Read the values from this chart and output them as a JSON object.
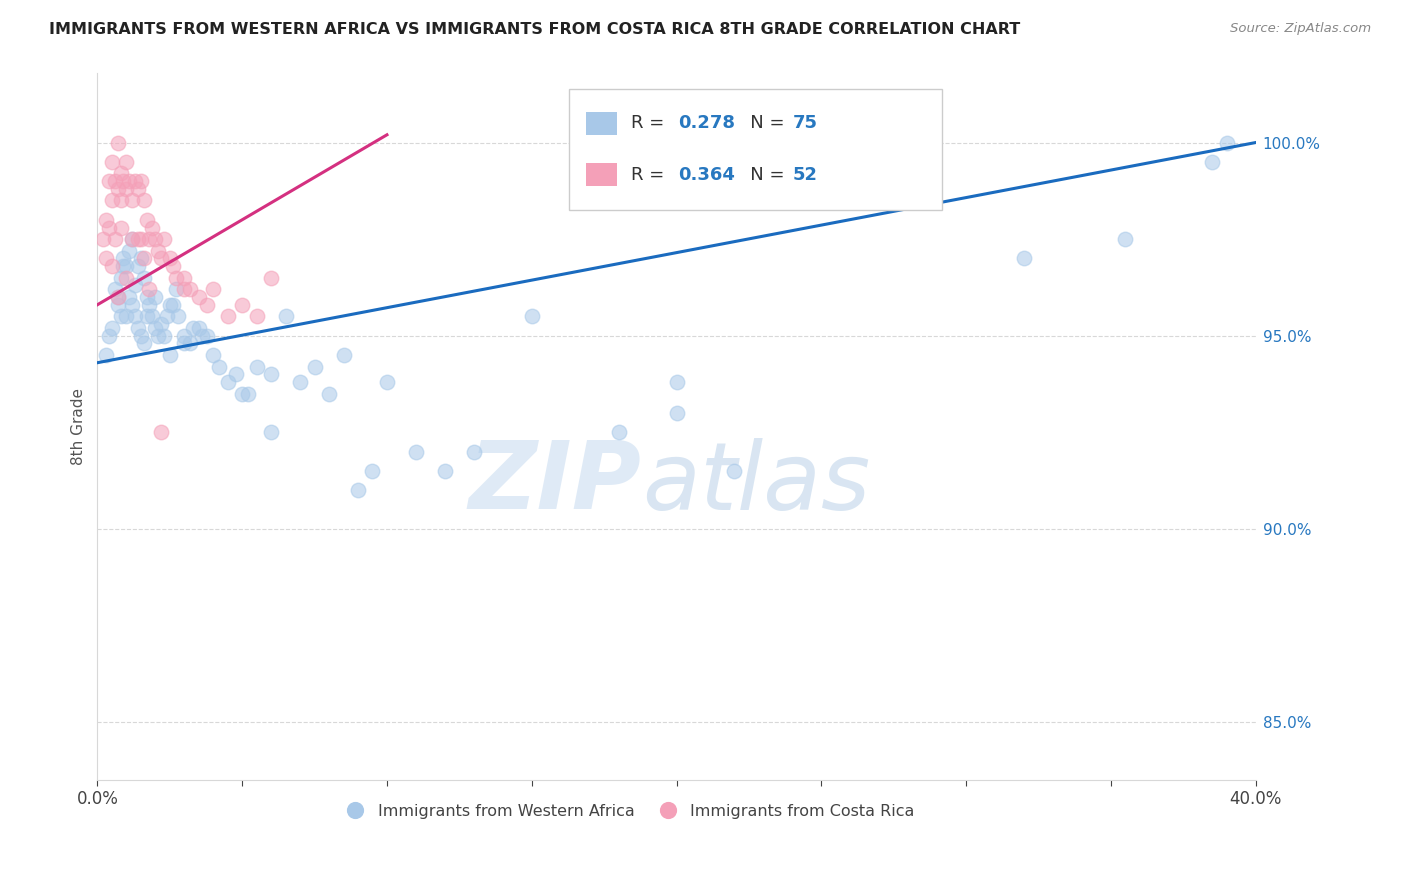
{
  "title": "IMMIGRANTS FROM WESTERN AFRICA VS IMMIGRANTS FROM COSTA RICA 8TH GRADE CORRELATION CHART",
  "source": "Source: ZipAtlas.com",
  "ylabel": "8th Grade",
  "ylabel_right_ticks": [
    85.0,
    90.0,
    95.0,
    100.0
  ],
  "xmin": 0.0,
  "xmax": 40.0,
  "ymin": 83.5,
  "ymax": 101.8,
  "blue_color": "#a8c8e8",
  "pink_color": "#f4a0b8",
  "blue_line_color": "#1a6bbf",
  "pink_line_color": "#d43080",
  "watermark_zip": "ZIP",
  "watermark_atlas": "atlas",
  "blue_line_x0": 0.0,
  "blue_line_y0": 94.3,
  "blue_line_x1": 40.0,
  "blue_line_y1": 100.0,
  "pink_line_x0": 0.0,
  "pink_line_y0": 95.8,
  "pink_line_x1": 10.0,
  "pink_line_y1": 100.2,
  "blue_x": [
    0.3,
    0.4,
    0.5,
    0.6,
    0.7,
    0.7,
    0.8,
    0.8,
    0.9,
    0.9,
    1.0,
    1.0,
    1.1,
    1.1,
    1.2,
    1.2,
    1.3,
    1.3,
    1.4,
    1.4,
    1.5,
    1.5,
    1.6,
    1.6,
    1.7,
    1.7,
    1.8,
    1.9,
    2.0,
    2.0,
    2.1,
    2.2,
    2.3,
    2.4,
    2.5,
    2.5,
    2.6,
    2.7,
    2.8,
    3.0,
    3.0,
    3.2,
    3.3,
    3.5,
    3.6,
    3.8,
    4.0,
    4.2,
    4.5,
    4.8,
    5.0,
    5.2,
    5.5,
    6.0,
    6.5,
    7.0,
    7.5,
    8.0,
    8.5,
    9.0,
    9.5,
    10.0,
    11.0,
    12.0,
    13.0,
    15.0,
    18.0,
    20.0,
    22.0,
    32.0,
    35.5,
    38.5,
    39.0,
    20.0,
    6.0
  ],
  "blue_y": [
    94.5,
    95.0,
    95.2,
    96.2,
    96.0,
    95.8,
    96.5,
    95.5,
    97.0,
    96.8,
    96.8,
    95.5,
    97.2,
    96.0,
    97.5,
    95.8,
    96.3,
    95.5,
    96.8,
    95.2,
    97.0,
    95.0,
    96.5,
    94.8,
    96.0,
    95.5,
    95.8,
    95.5,
    95.2,
    96.0,
    95.0,
    95.3,
    95.0,
    95.5,
    94.5,
    95.8,
    95.8,
    96.2,
    95.5,
    95.0,
    94.8,
    94.8,
    95.2,
    95.2,
    95.0,
    95.0,
    94.5,
    94.2,
    93.8,
    94.0,
    93.5,
    93.5,
    94.2,
    94.0,
    95.5,
    93.8,
    94.2,
    93.5,
    94.5,
    91.0,
    91.5,
    93.8,
    92.0,
    91.5,
    92.0,
    95.5,
    92.5,
    93.0,
    91.5,
    97.0,
    97.5,
    99.5,
    100.0,
    93.8,
    92.5
  ],
  "pink_x": [
    0.2,
    0.3,
    0.4,
    0.4,
    0.5,
    0.5,
    0.6,
    0.7,
    0.7,
    0.8,
    0.8,
    0.9,
    1.0,
    1.0,
    1.1,
    1.2,
    1.3,
    1.4,
    1.5,
    1.5,
    1.6,
    1.7,
    1.8,
    1.9,
    2.0,
    2.1,
    2.2,
    2.3,
    2.5,
    2.6,
    2.7,
    3.0,
    3.0,
    3.2,
    3.5,
    3.8,
    4.0,
    4.5,
    5.0,
    5.5,
    6.0,
    0.5,
    0.6,
    0.8,
    1.0,
    1.2,
    1.4,
    1.6,
    1.8,
    0.3,
    0.7,
    2.2
  ],
  "pink_y": [
    97.5,
    98.0,
    97.8,
    99.0,
    98.5,
    99.5,
    99.0,
    98.8,
    100.0,
    98.5,
    99.2,
    99.0,
    99.5,
    98.8,
    99.0,
    98.5,
    99.0,
    98.8,
    99.0,
    97.5,
    98.5,
    98.0,
    97.5,
    97.8,
    97.5,
    97.2,
    97.0,
    97.5,
    97.0,
    96.8,
    96.5,
    96.5,
    96.2,
    96.2,
    96.0,
    95.8,
    96.2,
    95.5,
    95.8,
    95.5,
    96.5,
    96.8,
    97.5,
    97.8,
    96.5,
    97.5,
    97.5,
    97.0,
    96.2,
    97.0,
    96.0,
    92.5
  ],
  "legend_blue_label": "Immigrants from Western Africa",
  "legend_pink_label": "Immigrants from Costa Rica",
  "grid_color": "#d8d8d8",
  "dot_border_alpha": 0.15
}
